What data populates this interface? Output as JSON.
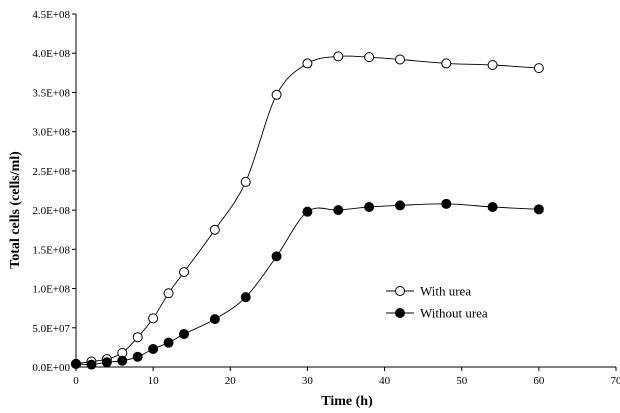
{
  "chart_data": {
    "type": "scatter",
    "title": "",
    "xlabel": "Time (h)",
    "ylabel": "Total cells (cells/ml)",
    "xlim": [
      0,
      70
    ],
    "ylim": [
      0,
      450000000
    ],
    "x_ticks": [
      0,
      10,
      20,
      30,
      40,
      50,
      60,
      70
    ],
    "x_tick_labels": [
      "0",
      "10",
      "20",
      "30",
      "40",
      "50",
      "60",
      "70"
    ],
    "y_ticks": [
      0,
      50000000,
      100000000,
      150000000,
      200000000,
      250000000,
      300000000,
      350000000,
      400000000,
      450000000
    ],
    "y_tick_labels": [
      "0.0E+00",
      "5.0E+07",
      "1.0E+08",
      "1.5E+08",
      "2.0E+08",
      "2.5E+08",
      "3.0E+08",
      "3.5E+08",
      "4.0E+08",
      "4.5E+08"
    ],
    "grid": false,
    "legend_position": "right",
    "series": [
      {
        "name": "With urea",
        "marker": "open-circle",
        "x": [
          0,
          2,
          4,
          6,
          8,
          10,
          12,
          14,
          18,
          22,
          26,
          30,
          34,
          38,
          42,
          48,
          54,
          60
        ],
        "y": [
          4000000,
          7000000,
          10000000,
          18000000,
          38000000,
          62000000,
          94000000,
          121000000,
          175000000,
          236000000,
          347000000,
          387000000,
          396000000,
          395000000,
          392000000,
          387000000,
          385000000,
          381000000
        ]
      },
      {
        "name": "Without urea",
        "marker": "filled-circle",
        "x": [
          0,
          2,
          4,
          6,
          8,
          10,
          12,
          14,
          18,
          22,
          26,
          30,
          34,
          38,
          42,
          48,
          54,
          60
        ],
        "y": [
          4000000,
          3000000,
          6000000,
          8000000,
          13000000,
          23000000,
          31000000,
          42000000,
          61000000,
          89000000,
          141000000,
          198000000,
          200000000,
          204000000,
          206000000,
          208000000,
          204000000,
          201000000
        ]
      }
    ]
  }
}
